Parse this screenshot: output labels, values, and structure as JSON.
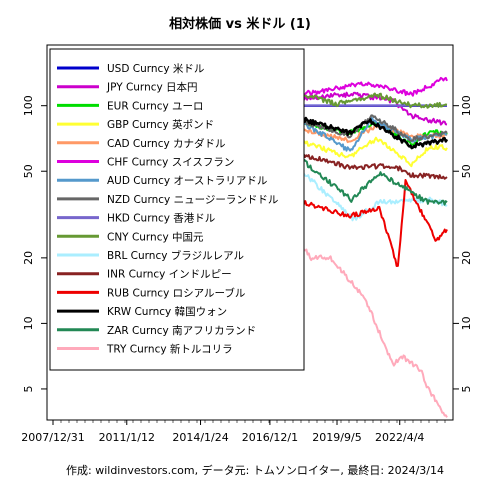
{
  "chart_data": {
    "type": "line",
    "title": "相対株価 vs 米ドル (1)",
    "caption": "作成: wildinvestors.com, データ元: トムソンロイター, 最終日: 2024/3/14",
    "y_scale": "log",
    "ylim": [
      3.6,
      190
    ],
    "y_ticks": [
      5,
      10,
      20,
      50,
      100
    ],
    "x_range": [
      "2007-12-31",
      "2024-03-14"
    ],
    "x_ticks": [
      "2007/12/31",
      "2011/1/12",
      "2014/1/24",
      "2016/12/1",
      "2019/9/5",
      "2022/4/4"
    ],
    "grid": false,
    "legend_position": "top-left",
    "series": [
      {
        "name": "USD Curncy 米ドル",
        "color": "#0000cc",
        "width": 2.5,
        "points": [
          [
            "2007-12-31",
            100
          ],
          [
            "2024-03-14",
            100
          ]
        ]
      },
      {
        "name": "JPY Curncy 日本円",
        "color": "#cc00cc",
        "width": 2,
        "points": [
          [
            "2007-12-31",
            100
          ],
          [
            "2009-01-15",
            135
          ],
          [
            "2011-10-01",
            150
          ],
          [
            "2012-10-01",
            140
          ],
          [
            "2013-06-01",
            113
          ],
          [
            "2015-06-01",
            97
          ],
          [
            "2016-09-01",
            120
          ],
          [
            "2018-01-01",
            108
          ],
          [
            "2020-06-01",
            113
          ],
          [
            "2022-01-01",
            105
          ],
          [
            "2022-10-01",
            90
          ],
          [
            "2024-03-14",
            82
          ]
        ]
      },
      {
        "name": "EUR Curncy ユーロ",
        "color": "#00dd00",
        "width": 2,
        "points": [
          [
            "2007-12-31",
            100
          ],
          [
            "2008-07-15",
            108
          ],
          [
            "2008-11-01",
            86
          ],
          [
            "2009-12-01",
            98
          ],
          [
            "2010-06-01",
            84
          ],
          [
            "2011-05-01",
            98
          ],
          [
            "2012-07-01",
            84
          ],
          [
            "2014-03-01",
            95
          ],
          [
            "2015-03-01",
            74
          ],
          [
            "2018-02-01",
            85
          ],
          [
            "2020-03-01",
            75
          ],
          [
            "2021-05-01",
            83
          ],
          [
            "2022-09-26",
            66
          ],
          [
            "2023-07-01",
            76
          ],
          [
            "2024-03-14",
            75
          ]
        ]
      },
      {
        "name": "GBP Curncy 英ポンド",
        "color": "#ffff33",
        "width": 2,
        "points": [
          [
            "2007-12-31",
            100
          ],
          [
            "2008-12-01",
            74
          ],
          [
            "2009-07-01",
            83
          ],
          [
            "2014-07-01",
            86
          ],
          [
            "2016-06-24",
            66
          ],
          [
            "2018-01-01",
            70
          ],
          [
            "2020-03-01",
            58
          ],
          [
            "2021-05-01",
            71
          ],
          [
            "2022-09-26",
            54
          ],
          [
            "2023-07-01",
            65
          ],
          [
            "2024-03-14",
            64
          ]
        ]
      },
      {
        "name": "CAD Curncy カナダドル",
        "color": "#ff9966",
        "width": 2,
        "points": [
          [
            "2007-12-31",
            100
          ],
          [
            "2008-12-01",
            78
          ],
          [
            "2011-07-01",
            104
          ],
          [
            "2013-01-01",
            99
          ],
          [
            "2016-01-01",
            70
          ],
          [
            "2017-09-01",
            81
          ],
          [
            "2020-03-01",
            69
          ],
          [
            "2021-06-01",
            82
          ],
          [
            "2022-10-01",
            72
          ],
          [
            "2024-03-14",
            73
          ]
        ]
      },
      {
        "name": "CHF Curncy スイスフラン",
        "color": "#dd00dd",
        "width": 2,
        "points": [
          [
            "2007-12-31",
            100
          ],
          [
            "2008-12-01",
            110
          ],
          [
            "2011-08-10",
            145
          ],
          [
            "2012-06-01",
            118
          ],
          [
            "2015-01-15",
            125
          ],
          [
            "2015-06-01",
            114
          ],
          [
            "2018-01-01",
            112
          ],
          [
            "2020-12-01",
            127
          ],
          [
            "2022-10-01",
            113
          ],
          [
            "2023-10-01",
            127
          ],
          [
            "2024-01-01",
            135
          ],
          [
            "2024-03-14",
            130
          ]
        ]
      },
      {
        "name": "AUD Curncy オーストラリアドル",
        "color": "#5599cc",
        "width": 2,
        "points": [
          [
            "2007-12-31",
            100
          ],
          [
            "2008-10-27",
            66
          ],
          [
            "2011-07-01",
            120
          ],
          [
            "2013-04-01",
            116
          ],
          [
            "2015-09-01",
            78
          ],
          [
            "2018-01-01",
            87
          ],
          [
            "2020-03-19",
            62
          ],
          [
            "2021-02-01",
            86
          ],
          [
            "2022-10-01",
            70
          ],
          [
            "2024-03-14",
            74
          ]
        ]
      },
      {
        "name": "NZD Curncy ニュージーランドドル",
        "color": "#666666",
        "width": 2,
        "points": [
          [
            "2007-12-31",
            100
          ],
          [
            "2009-03-01",
            65
          ],
          [
            "2011-08-01",
            101
          ],
          [
            "2014-07-01",
            105
          ],
          [
            "2015-08-01",
            80
          ],
          [
            "2017-07-01",
            90
          ],
          [
            "2020-03-19",
            73
          ],
          [
            "2021-02-01",
            90
          ],
          [
            "2022-10-01",
            70
          ],
          [
            "2024-03-14",
            75
          ]
        ]
      },
      {
        "name": "HKD Curncy 香港ドル",
        "color": "#7766cc",
        "width": 2,
        "points": [
          [
            "2007-12-31",
            100
          ],
          [
            "2024-03-14",
            100
          ]
        ]
      },
      {
        "name": "CNY Curncy 中国元",
        "color": "#669933",
        "width": 2,
        "points": [
          [
            "2007-12-31",
            100
          ],
          [
            "2008-07-01",
            106
          ],
          [
            "2014-01-01",
            117
          ],
          [
            "2015-08-11",
            114
          ],
          [
            "2017-01-01",
            104
          ],
          [
            "2018-03-01",
            114
          ],
          [
            "2019-09-01",
            102
          ],
          [
            "2021-05-01",
            112
          ],
          [
            "2022-10-01",
            100
          ],
          [
            "2024-03-14",
            101
          ]
        ]
      },
      {
        "name": "BRL Curncy ブラジルレアル",
        "color": "#aaeeff",
        "width": 2,
        "points": [
          [
            "2007-12-31",
            100
          ],
          [
            "2008-08-01",
            112
          ],
          [
            "2008-12-05",
            73
          ],
          [
            "2011-07-26",
            115
          ],
          [
            "2013-08-01",
            75
          ],
          [
            "2015-09-24",
            44
          ],
          [
            "2016-07-01",
            55
          ],
          [
            "2018-01-01",
            53
          ],
          [
            "2020-05-13",
            30
          ],
          [
            "2021-06-01",
            36
          ],
          [
            "2023-07-01",
            37
          ],
          [
            "2024-03-14",
            35
          ]
        ]
      },
      {
        "name": "INR Curncy インドルピー",
        "color": "#882222",
        "width": 2,
        "points": [
          [
            "2007-12-31",
            100
          ],
          [
            "2009-03-01",
            77
          ],
          [
            "2011-07-01",
            89
          ],
          [
            "2013-08-28",
            64
          ],
          [
            "2015-01-01",
            64
          ],
          [
            "2017-09-01",
            62
          ],
          [
            "2020-04-01",
            52
          ],
          [
            "2022-01-01",
            53
          ],
          [
            "2022-10-01",
            48
          ],
          [
            "2024-03-14",
            47
          ]
        ]
      },
      {
        "name": "RUB Curncy ロシアルーブル",
        "color": "#ee0000",
        "width": 2,
        "points": [
          [
            "2007-12-31",
            100
          ],
          [
            "2008-07-01",
            105
          ],
          [
            "2009-02-01",
            68
          ],
          [
            "2011-04-01",
            87
          ],
          [
            "2014-01-01",
            72
          ],
          [
            "2014-12-16",
            36
          ],
          [
            "2015-05-01",
            48
          ],
          [
            "2016-01-20",
            31
          ],
          [
            "2017-01-01",
            41
          ],
          [
            "2018-09-01",
            35
          ],
          [
            "2020-03-01",
            31
          ],
          [
            "2021-06-01",
            34
          ],
          [
            "2022-03-07",
            18
          ],
          [
            "2022-06-29",
            45
          ],
          [
            "2023-01-01",
            35
          ],
          [
            "2023-10-09",
            24
          ],
          [
            "2024-03-14",
            27
          ]
        ]
      },
      {
        "name": "KRW Curncy 韓国ウォン",
        "color": "#000000",
        "width": 2.5,
        "points": [
          [
            "2007-12-31",
            100
          ],
          [
            "2008-11-01",
            63
          ],
          [
            "2009-03-01",
            60
          ],
          [
            "2010-01-01",
            80
          ],
          [
            "2014-07-01",
            92
          ],
          [
            "2016-02-01",
            76
          ],
          [
            "2018-04-01",
            87
          ],
          [
            "2020-03-01",
            75
          ],
          [
            "2021-01-01",
            86
          ],
          [
            "2022-10-01",
            65
          ],
          [
            "2024-03-14",
            70
          ]
        ]
      },
      {
        "name": "ZAR Curncy 南アフリカランド",
        "color": "#228855",
        "width": 2,
        "points": [
          [
            "2007-12-31",
            100
          ],
          [
            "2008-10-22",
            60
          ],
          [
            "2011-05-01",
            105
          ],
          [
            "2013-06-01",
            70
          ],
          [
            "2016-01-20",
            42
          ],
          [
            "2018-02-01",
            58
          ],
          [
            "2020-04-06",
            37
          ],
          [
            "2021-06-01",
            49
          ],
          [
            "2023-06-01",
            36
          ],
          [
            "2024-03-14",
            36
          ]
        ]
      },
      {
        "name": "TRY Curncy 新トルコリラ",
        "color": "#ffaabb",
        "width": 2,
        "points": [
          [
            "2007-12-31",
            100
          ],
          [
            "2008-07-01",
            102
          ],
          [
            "2009-03-01",
            70
          ],
          [
            "2011-01-01",
            75
          ],
          [
            "2013-05-01",
            64
          ],
          [
            "2015-01-01",
            51
          ],
          [
            "2016-08-01",
            40
          ],
          [
            "2018-08-13",
            20
          ],
          [
            "2019-06-01",
            20
          ],
          [
            "2020-11-01",
            13
          ],
          [
            "2021-12-20",
            6.5
          ],
          [
            "2022-06-01",
            7
          ],
          [
            "2023-03-01",
            6
          ],
          [
            "2023-06-01",
            5
          ],
          [
            "2024-03-14",
            3.7
          ]
        ]
      }
    ]
  }
}
